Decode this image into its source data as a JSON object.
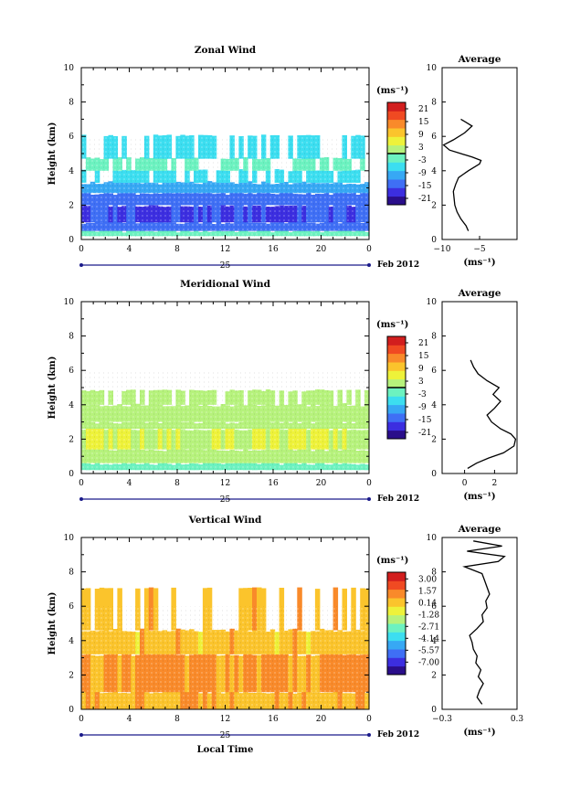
{
  "chart_data": [
    {
      "type": "heatmap",
      "title": "Zonal Wind",
      "ylabel": "Height (km)",
      "ylim": [
        0,
        10
      ],
      "xlim": [
        0,
        24
      ],
      "x_ticks": [
        "0",
        "4",
        "8",
        "12",
        "16",
        "20",
        "0"
      ],
      "y_ticks": [
        "0",
        "2",
        "4",
        "6",
        "8",
        "10"
      ],
      "date_day": "25",
      "date_month": "Feb 2012",
      "colorbar": {
        "unit": "(ms⁻¹)",
        "min": -24,
        "max": 24,
        "tick_values": [
          21,
          15,
          9,
          3,
          -3,
          -9,
          -15,
          -21
        ],
        "tick_labels": [
          "21",
          "15",
          "9",
          "3",
          "-3",
          "-9",
          "-15",
          "-21"
        ],
        "contour_level": 0
      },
      "colormap": [
        "#2a0e8a",
        "#3c2ee0",
        "#3f6ff5",
        "#37a8f4",
        "#3cdef0",
        "#6cf2c0",
        "#b6f27c",
        "#eef23a",
        "#fbc42c",
        "#f98a2a",
        "#f04a22",
        "#d21e1e"
      ],
      "bands": [
        {
          "h0": 0.2,
          "h1": 0.5,
          "value": -2
        },
        {
          "h0": 0.5,
          "h1": 1.0,
          "value": -13
        },
        {
          "h0": 1.0,
          "h1": 2.0,
          "value": -16
        },
        {
          "h0": 2.0,
          "h1": 2.7,
          "value": -14
        },
        {
          "h0": 2.7,
          "h1": 3.3,
          "value": -9
        },
        {
          "h0": 3.3,
          "h1": 4.0,
          "value": -5
        },
        {
          "h0": 4.0,
          "h1": 4.7,
          "value": -3
        },
        {
          "h0": 4.7,
          "h1": 6.0,
          "value": -6
        }
      ],
      "average": {
        "title": "Average",
        "xlabel": "(ms⁻¹)",
        "xlim": [
          -10,
          0
        ],
        "x_ticks": [
          -10,
          -5
        ],
        "x_tick_labels": [
          "−10",
          "−5"
        ],
        "heights": [
          0.5,
          0.8,
          1.2,
          1.6,
          2.0,
          2.4,
          2.8,
          3.2,
          3.6,
          4.0,
          4.4,
          4.6,
          4.8,
          5.0,
          5.2,
          5.5,
          5.8,
          6.2,
          6.6,
          7.0
        ],
        "values": [
          -6.5,
          -6.8,
          -7.5,
          -8.0,
          -8.3,
          -8.4,
          -8.5,
          -8.2,
          -7.8,
          -6.5,
          -5.0,
          -4.8,
          -6.0,
          -7.5,
          -9.0,
          -9.8,
          -8.5,
          -7.0,
          -6.0,
          -7.5
        ]
      }
    },
    {
      "type": "heatmap",
      "title": "Meridional Wind",
      "ylabel": "Height (km)",
      "ylim": [
        0,
        10
      ],
      "xlim": [
        0,
        24
      ],
      "x_ticks": [
        "0",
        "4",
        "8",
        "12",
        "16",
        "20",
        "0"
      ],
      "y_ticks": [
        "0",
        "2",
        "4",
        "6",
        "8",
        "10"
      ],
      "date_day": "25",
      "date_month": "Feb 2012",
      "colorbar": {
        "unit": "(ms⁻¹)",
        "min": -24,
        "max": 24,
        "tick_values": [
          21,
          15,
          9,
          3,
          -3,
          -9,
          -15,
          -21
        ],
        "tick_labels": [
          "21",
          "15",
          "9",
          "3",
          "-3",
          "-9",
          "-15",
          "-21"
        ],
        "contour_level": 0
      },
      "colormap": [
        "#2a0e8a",
        "#3c2ee0",
        "#3f6ff5",
        "#37a8f4",
        "#3cdef0",
        "#6cf2c0",
        "#b6f27c",
        "#eef23a",
        "#fbc42c",
        "#f98a2a",
        "#f04a22",
        "#d21e1e"
      ],
      "bands": [
        {
          "h0": 0.2,
          "h1": 0.6,
          "value": -2
        },
        {
          "h0": 0.6,
          "h1": 1.4,
          "value": 2
        },
        {
          "h0": 1.4,
          "h1": 2.6,
          "value": 4
        },
        {
          "h0": 2.6,
          "h1": 3.0,
          "value": 2
        },
        {
          "h0": 3.0,
          "h1": 4.0,
          "value": 1
        },
        {
          "h0": 4.0,
          "h1": 4.8,
          "value": 1
        }
      ],
      "average": {
        "title": "Average",
        "xlabel": "(ms⁻¹)",
        "xlim": [
          -1.5,
          3.5
        ],
        "x_ticks": [
          0,
          2
        ],
        "x_tick_labels": [
          "0",
          "2"
        ],
        "heights": [
          0.3,
          0.6,
          0.9,
          1.2,
          1.6,
          2.0,
          2.3,
          2.6,
          3.0,
          3.4,
          3.8,
          4.2,
          4.6,
          5.0,
          5.4,
          5.8,
          6.2,
          6.6
        ],
        "values": [
          0.2,
          0.8,
          1.6,
          2.6,
          3.3,
          3.4,
          3.1,
          2.4,
          1.8,
          1.5,
          2.0,
          2.4,
          1.9,
          2.3,
          1.5,
          0.9,
          0.6,
          0.4
        ]
      }
    },
    {
      "type": "heatmap",
      "title": "Vertical Wind",
      "ylabel": "Height (km)",
      "xlabel": "Local Time",
      "ylim": [
        0,
        10
      ],
      "xlim": [
        0,
        24
      ],
      "x_ticks": [
        "0",
        "4",
        "8",
        "12",
        "16",
        "20",
        "0"
      ],
      "y_ticks": [
        "0",
        "2",
        "4",
        "6",
        "8",
        "10"
      ],
      "date_day": "25",
      "date_month": "Feb 2012",
      "colorbar": {
        "unit": "(ms⁻¹)",
        "min": -8.5,
        "max": 3.8,
        "tick_values": [
          3.0,
          1.57,
          0.14,
          -1.28,
          -2.71,
          -4.14,
          -5.57,
          -7.0
        ],
        "tick_labels": [
          "3.00",
          "1.57",
          "0.14",
          "-1.28",
          "-2.71",
          "-4.14",
          "-5.57",
          "-7.00"
        ]
      },
      "colormap": [
        "#2a0e8a",
        "#3c2ee0",
        "#3f6ff5",
        "#37a8f4",
        "#3cdef0",
        "#6cf2c0",
        "#b6f27c",
        "#eef23a",
        "#fbc42c",
        "#f98a2a",
        "#f04a22",
        "#d21e1e"
      ],
      "bands": [
        {
          "h0": 0.0,
          "h1": 1.0,
          "value": 0.5
        },
        {
          "h0": 1.0,
          "h1": 3.2,
          "value": 1.0
        },
        {
          "h0": 3.2,
          "h1": 4.6,
          "value": 0.2
        },
        {
          "h0": 4.6,
          "h1": 7.0,
          "value": 0.15
        }
      ],
      "average": {
        "title": "Average",
        "xlabel": "(ms⁻¹)",
        "xlim": [
          -0.3,
          0.3
        ],
        "x_ticks": [
          -0.3,
          0.3
        ],
        "x_tick_labels": [
          "−0.3",
          "0.3"
        ],
        "heights": [
          0.3,
          0.7,
          1.1,
          1.5,
          1.9,
          2.3,
          2.7,
          3.1,
          3.5,
          3.9,
          4.3,
          4.7,
          5.1,
          5.5,
          5.9,
          6.3,
          6.7,
          7.1,
          7.5,
          7.9,
          8.3,
          8.6,
          8.9,
          9.2,
          9.5,
          9.8
        ],
        "values": [
          0.02,
          -0.02,
          0.0,
          0.03,
          -0.01,
          0.01,
          -0.03,
          -0.02,
          -0.05,
          -0.06,
          -0.08,
          -0.02,
          0.03,
          0.02,
          0.06,
          0.05,
          0.08,
          0.06,
          0.04,
          0.02,
          -0.12,
          0.15,
          0.2,
          -0.1,
          0.18,
          -0.05
        ]
      }
    }
  ]
}
